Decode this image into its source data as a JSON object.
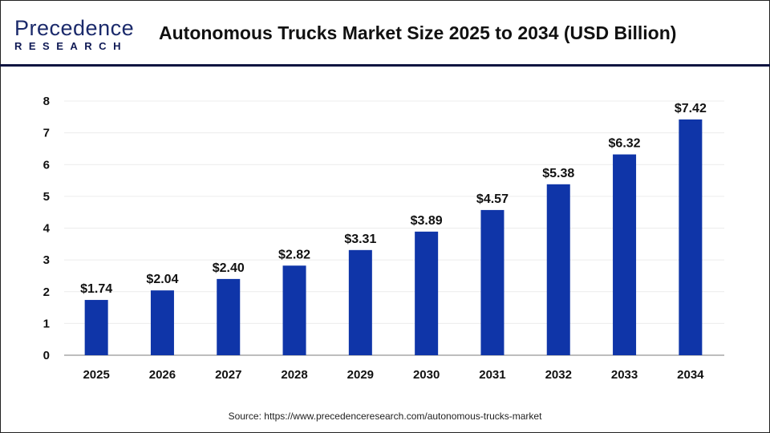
{
  "header": {
    "logo_line1": "Precedence",
    "logo_line2": "RESEARCH",
    "title": "Autonomous Trucks Market Size 2025 to 2034 (USD Billion)"
  },
  "source": "Source: https://www.precedenceresearch.com/autonomous-trucks-market",
  "chart_data": {
    "type": "bar",
    "title": "Autonomous Trucks Market Size 2025 to 2034 (USD Billion)",
    "categories": [
      "2025",
      "2026",
      "2027",
      "2028",
      "2029",
      "2030",
      "2031",
      "2032",
      "2033",
      "2034"
    ],
    "values": [
      1.74,
      2.04,
      2.4,
      2.82,
      3.31,
      3.89,
      4.57,
      5.38,
      6.32,
      7.42
    ],
    "data_labels": [
      "$1.74",
      "$2.04",
      "$2.40",
      "$2.82",
      "$3.31",
      "$3.89",
      "$4.57",
      "$5.38",
      "$6.32",
      "$7.42"
    ],
    "yticks": [
      "0",
      "1",
      "2",
      "3",
      "4",
      "5",
      "6",
      "7",
      "8"
    ],
    "ylim": [
      0,
      8
    ],
    "xlabel": "",
    "ylabel": "",
    "grid": true,
    "bar_color": "#0f35a8"
  }
}
